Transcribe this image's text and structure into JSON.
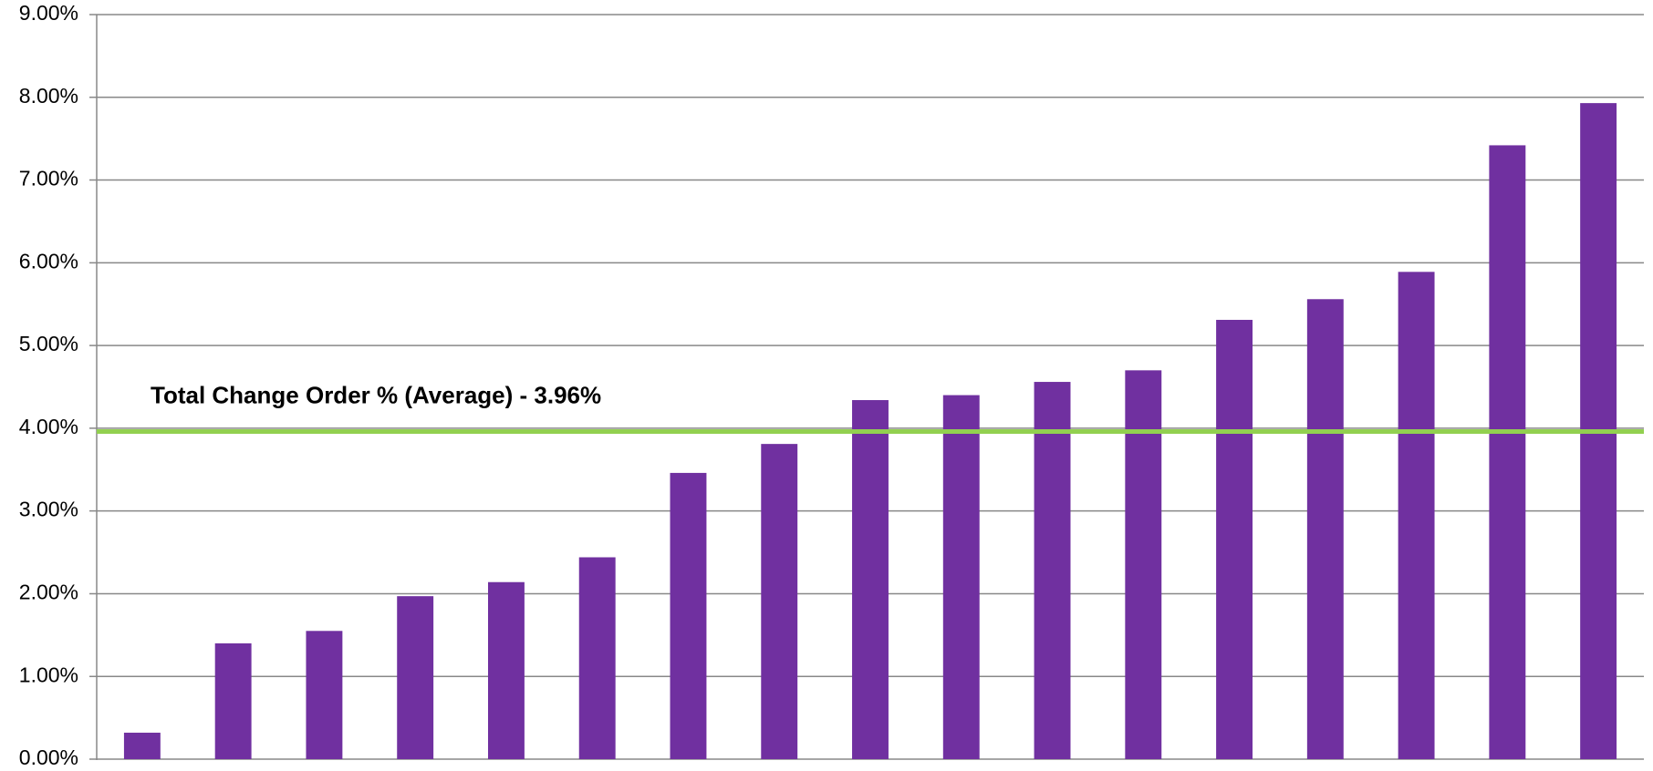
{
  "chart_data": {
    "type": "bar",
    "values": [
      0.32,
      1.4,
      1.55,
      1.97,
      2.14,
      2.44,
      3.46,
      3.81,
      4.34,
      4.4,
      4.56,
      4.7,
      5.31,
      5.56,
      5.89,
      7.42,
      7.93
    ],
    "color": "#7030a0",
    "ylim": [
      0,
      9
    ],
    "yticks": [
      {
        "value": 0,
        "label": "0.00%"
      },
      {
        "value": 1,
        "label": "1.00%"
      },
      {
        "value": 2,
        "label": "2.00%"
      },
      {
        "value": 3,
        "label": "3.00%"
      },
      {
        "value": 4,
        "label": "4.00%"
      },
      {
        "value": 5,
        "label": "5.00%"
      },
      {
        "value": 6,
        "label": "6.00%"
      },
      {
        "value": 7,
        "label": "7.00%"
      },
      {
        "value": 8,
        "label": "8.00%"
      },
      {
        "value": 9,
        "label": "9.00%"
      }
    ],
    "grid": true,
    "average": {
      "value": 3.96,
      "label": "Total Change Order % (Average) - 3.96%",
      "color": "#92d050"
    }
  }
}
